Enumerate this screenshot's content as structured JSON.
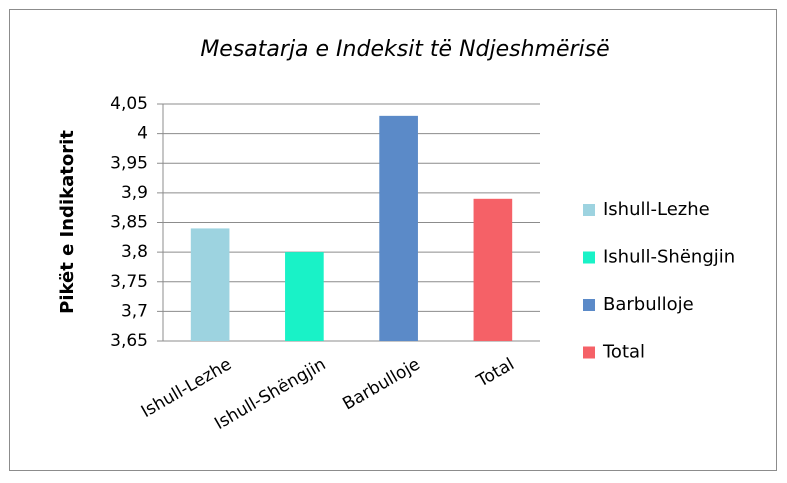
{
  "chart_data": {
    "type": "bar",
    "title": "Mesatarja e Indeksit të Ndjeshmërisë",
    "y_label": "Pikët e Indikatorit",
    "categories": [
      "Ishull-Lezhe",
      "Ishull-Shëngjin",
      "Barbulloje",
      "Total"
    ],
    "values": [
      3.84,
      3.8,
      4.03,
      3.89
    ],
    "colors": [
      "#9dd3e0",
      "#19f2c7",
      "#5b8ac8",
      "#f56167"
    ],
    "ylim": [
      3.65,
      4.05
    ],
    "yticks": [
      {
        "value": 3.65,
        "label": "3,65"
      },
      {
        "value": 3.7,
        "label": "3,7"
      },
      {
        "value": 3.75,
        "label": "3,75"
      },
      {
        "value": 3.8,
        "label": "3,8"
      },
      {
        "value": 3.85,
        "label": "3,85"
      },
      {
        "value": 3.9,
        "label": "3,9"
      },
      {
        "value": 3.95,
        "label": "3,95"
      },
      4,
      {
        "value": 4.05,
        "label": "4,05"
      }
    ],
    "grid": true,
    "legend": "right"
  }
}
